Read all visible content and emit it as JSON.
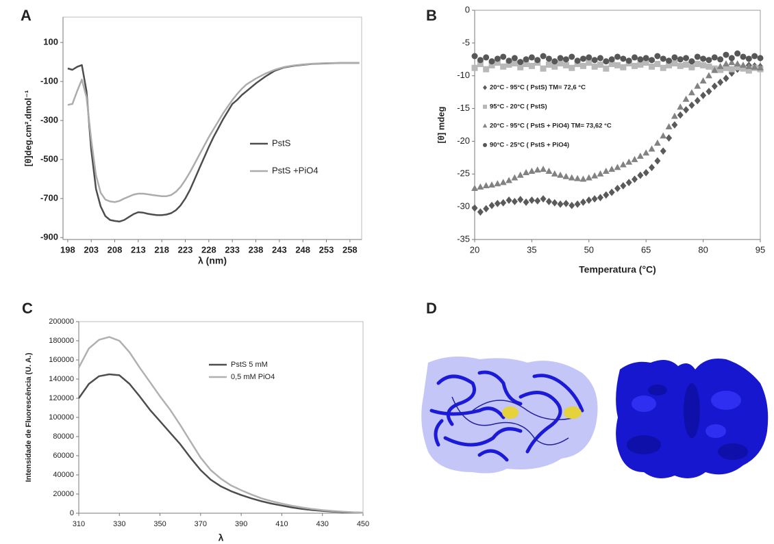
{
  "panel_labels": [
    "A",
    "B",
    "C",
    "D"
  ],
  "chart_data": [
    {
      "type": "line",
      "xlabel": "λ (nm)",
      "ylabel": "[θ]deg.cm².dmol⁻¹",
      "xlim": [
        197,
        260.5
      ],
      "xticks": [
        198,
        203,
        208,
        213,
        218,
        223,
        228,
        233,
        238,
        243,
        248,
        253,
        258
      ],
      "ylim": [
        -910,
        230
      ],
      "yticks": [
        100,
        -100,
        -300,
        -500,
        -700,
        -900
      ],
      "x": [
        198,
        199,
        200,
        201,
        202,
        203,
        204,
        205,
        206,
        207,
        208,
        209,
        210,
        211,
        212,
        213,
        214,
        215,
        216,
        217,
        218,
        219,
        220,
        221,
        222,
        223,
        224,
        225,
        226,
        227,
        228,
        229,
        230,
        231,
        232,
        233,
        234,
        235,
        236,
        238,
        240,
        242,
        244,
        246,
        248,
        250,
        253,
        256,
        260
      ],
      "series": [
        {
          "name": "PstS",
          "color": "#4d4d4d",
          "values": [
            -33,
            -40,
            -25,
            -16,
            -150,
            -450,
            -650,
            -740,
            -790,
            -810,
            -815,
            -818,
            -810,
            -795,
            -780,
            -770,
            -772,
            -778,
            -782,
            -785,
            -785,
            -782,
            -775,
            -760,
            -735,
            -700,
            -655,
            -600,
            -545,
            -490,
            -435,
            -385,
            -340,
            -295,
            -255,
            -215,
            -195,
            -170,
            -150,
            -110,
            -75,
            -45,
            -28,
            -20,
            -15,
            -10,
            -7,
            -5,
            -5
          ]
        },
        {
          "name": "PstS +PiO4",
          "color": "#acacac",
          "values": [
            -220,
            -215,
            -150,
            -90,
            -180,
            -400,
            -580,
            -670,
            -705,
            -715,
            -718,
            -712,
            -700,
            -690,
            -680,
            -675,
            -675,
            -678,
            -682,
            -685,
            -688,
            -688,
            -682,
            -665,
            -640,
            -605,
            -565,
            -520,
            -475,
            -430,
            -385,
            -345,
            -305,
            -265,
            -230,
            -195,
            -165,
            -138,
            -115,
            -85,
            -60,
            -40,
            -26,
            -18,
            -13,
            -9,
            -6,
            -5,
            -5
          ]
        }
      ]
    },
    {
      "type": "scatter",
      "xlabel": "Temperatura (°C)",
      "ylabel": "[θ] mdeg",
      "xlim": [
        20,
        95
      ],
      "xticks": [
        20,
        35,
        50,
        65,
        80,
        95
      ],
      "ylim": [
        -35,
        0
      ],
      "yticks": [
        0,
        -5,
        -10,
        -15,
        -20,
        -25,
        -30,
        -35
      ],
      "x": [
        20,
        21.5,
        23,
        24.5,
        26,
        27.5,
        29,
        30.5,
        32,
        33.5,
        35,
        36.5,
        38,
        39.5,
        41,
        42.5,
        44,
        45.5,
        47,
        48.5,
        50,
        51.5,
        53,
        54.5,
        56,
        57.5,
        59,
        60.5,
        62,
        63.5,
        65,
        66.5,
        68,
        69.5,
        71,
        72.5,
        74,
        75.5,
        77,
        78.5,
        80,
        81.5,
        83,
        84.5,
        86,
        87.5,
        89,
        90.5,
        92,
        93.5,
        95
      ],
      "series": [
        {
          "name": "20°C - 95°C ( PstS) TM= 72,6 °C",
          "color": "#5a5a5a",
          "marker": "diamond",
          "values": [
            -30.2,
            -30.8,
            -30.3,
            -29.8,
            -29.5,
            -29.4,
            -29.0,
            -29.2,
            -28.9,
            -29.3,
            -29.0,
            -29.1,
            -28.8,
            -29.2,
            -29.4,
            -29.6,
            -29.5,
            -29.8,
            -29.6,
            -29.3,
            -29.0,
            -28.8,
            -28.6,
            -28.2,
            -27.8,
            -27.2,
            -26.8,
            -26.3,
            -25.8,
            -25.2,
            -24.8,
            -24.0,
            -23.0,
            -21.5,
            -19.5,
            -17.5,
            -16.0,
            -15.2,
            -14.5,
            -13.8,
            -13.0,
            -12.4,
            -11.6,
            -11.0,
            -10.4,
            -9.6,
            -9.0,
            -8.6,
            -8.4,
            -8.5,
            -8.6
          ]
        },
        {
          "name": "95°C - 20°C ( PstS)",
          "color": "#b8b8b8",
          "marker": "square",
          "values": [
            -8.8,
            -8.2,
            -9.0,
            -8.4,
            -8.0,
            -8.6,
            -8.3,
            -8.1,
            -8.7,
            -8.2,
            -8.5,
            -8.0,
            -8.9,
            -8.3,
            -8.6,
            -8.1,
            -8.4,
            -8.8,
            -8.2,
            -8.5,
            -8.0,
            -8.6,
            -8.3,
            -8.9,
            -8.2,
            -8.4,
            -8.7,
            -8.1,
            -8.5,
            -8.3,
            -8.0,
            -8.6,
            -8.2,
            -8.8,
            -8.4,
            -8.1,
            -8.5,
            -8.3,
            -8.7,
            -8.2,
            -8.4,
            -8.6,
            -8.9,
            -9.1,
            -8.8,
            -9.0,
            -8.7,
            -8.9,
            -9.2,
            -8.8,
            -9.0
          ]
        },
        {
          "name": "20°C - 95°C ( PstS + PiO4) TM= 73,62 °C",
          "color": "#828282",
          "marker": "triangle",
          "values": [
            -27.2,
            -27.0,
            -26.8,
            -26.7,
            -26.5,
            -26.3,
            -26.0,
            -25.6,
            -25.2,
            -24.8,
            -24.6,
            -24.4,
            -24.3,
            -24.6,
            -25.0,
            -25.2,
            -25.4,
            -25.6,
            -25.7,
            -25.8,
            -25.6,
            -25.3,
            -25.0,
            -24.6,
            -24.3,
            -24.0,
            -23.6,
            -23.2,
            -22.8,
            -22.3,
            -21.8,
            -21.2,
            -20.3,
            -19.2,
            -17.8,
            -16.2,
            -14.8,
            -13.6,
            -12.6,
            -11.6,
            -10.8,
            -10.0,
            -9.2,
            -8.6,
            -8.2,
            -8.0,
            -8.2,
            -8.4,
            -8.6,
            -8.7,
            -8.8
          ]
        },
        {
          "name": "90°C - 25°C ( PstS + PiO4)",
          "color": "#575757",
          "marker": "circle",
          "values": [
            -7.0,
            -7.6,
            -7.2,
            -7.8,
            -7.4,
            -7.1,
            -7.7,
            -7.3,
            -7.9,
            -7.5,
            -7.2,
            -7.6,
            -7.0,
            -7.4,
            -7.8,
            -7.3,
            -7.5,
            -7.1,
            -7.7,
            -7.4,
            -7.2,
            -7.6,
            -7.3,
            -7.8,
            -7.5,
            -7.1,
            -7.4,
            -7.7,
            -7.2,
            -7.5,
            -7.3,
            -7.6,
            -7.0,
            -7.4,
            -7.7,
            -7.2,
            -7.5,
            -7.3,
            -7.8,
            -7.1,
            -7.4,
            -7.6,
            -7.2,
            -7.5,
            -6.8,
            -7.3,
            -6.6,
            -7.1,
            -7.4,
            -7.0,
            -7.3
          ]
        }
      ]
    },
    {
      "type": "line",
      "xlabel": "λ",
      "ylabel": "Intensidade de Fluorescência (U. A.)",
      "xlim": [
        310,
        450
      ],
      "xticks": [
        310,
        330,
        350,
        370,
        390,
        410,
        430,
        450
      ],
      "ylim": [
        0,
        200000
      ],
      "yticks": [
        0,
        20000,
        40000,
        60000,
        80000,
        100000,
        120000,
        140000,
        160000,
        180000,
        200000
      ],
      "x": [
        310,
        315,
        320,
        325,
        330,
        335,
        340,
        345,
        350,
        355,
        360,
        365,
        370,
        375,
        380,
        385,
        390,
        395,
        400,
        405,
        410,
        415,
        420,
        425,
        430,
        435,
        440,
        445,
        450
      ],
      "series": [
        {
          "name": "PstS 5 mM",
          "color": "#4d4d4d",
          "values": [
            120000,
            135000,
            143000,
            145000,
            144000,
            135000,
            122000,
            108000,
            96000,
            84000,
            72000,
            58000,
            45000,
            35000,
            28000,
            23000,
            19000,
            15500,
            12500,
            10000,
            8000,
            6000,
            4500,
            3300,
            2400,
            1700,
            1200,
            800,
            500
          ]
        },
        {
          "name": "0,5 mM PiO4",
          "color": "#b0b0b0",
          "values": [
            152000,
            172000,
            181000,
            184000,
            180000,
            168000,
            152000,
            137000,
            122000,
            108000,
            92000,
            75000,
            58000,
            45000,
            36000,
            29000,
            24000,
            19500,
            15500,
            12500,
            10000,
            7800,
            6000,
            4400,
            3200,
            2300,
            1600,
            1000,
            600
          ]
        }
      ]
    }
  ]
}
